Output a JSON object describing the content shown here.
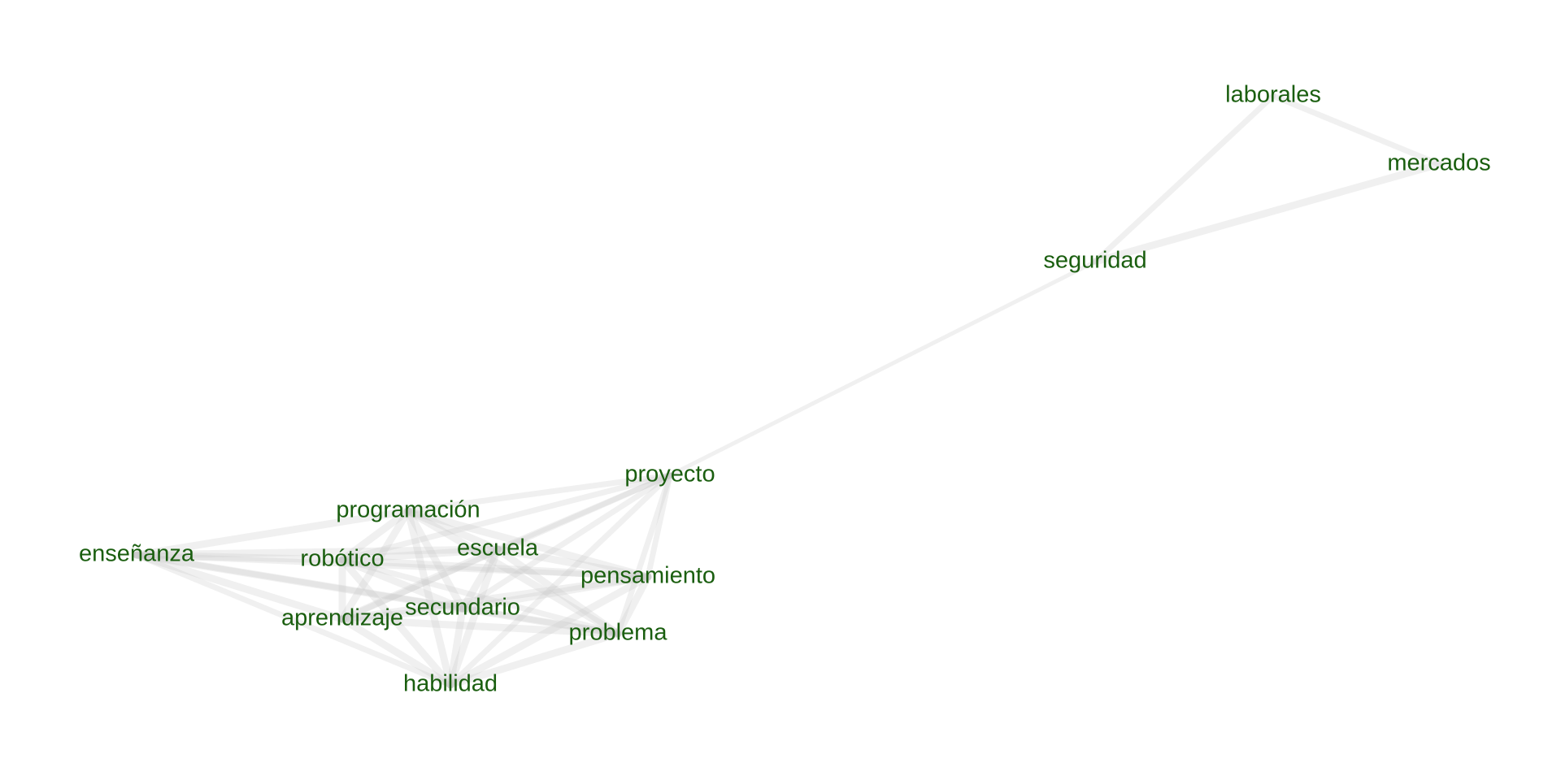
{
  "graph": {
    "label_color": "#1a5e0f",
    "edge_color": "#c8c8c8",
    "nodes": [
      {
        "id": "laborales",
        "label": "laborales"
      },
      {
        "id": "mercados",
        "label": "mercados"
      },
      {
        "id": "seguridad",
        "label": "seguridad"
      },
      {
        "id": "proyecto",
        "label": "proyecto"
      },
      {
        "id": "programacion",
        "label": "programación"
      },
      {
        "id": "ensenanza",
        "label": "enseñanza"
      },
      {
        "id": "robotico",
        "label": "robótico"
      },
      {
        "id": "escuela",
        "label": "escuela"
      },
      {
        "id": "pensamiento",
        "label": "pensamiento"
      },
      {
        "id": "secundario",
        "label": "secundario"
      },
      {
        "id": "aprendizaje",
        "label": "aprendizaje"
      },
      {
        "id": "problema",
        "label": "problema"
      },
      {
        "id": "habilidad",
        "label": "habilidad"
      }
    ],
    "edges": [
      {
        "source": "laborales",
        "target": "mercados",
        "weight": 2
      },
      {
        "source": "laborales",
        "target": "seguridad",
        "weight": 2
      },
      {
        "source": "mercados",
        "target": "seguridad",
        "weight": 3
      },
      {
        "source": "seguridad",
        "target": "proyecto",
        "weight": 1
      },
      {
        "source": "proyecto",
        "target": "programacion",
        "weight": 2
      },
      {
        "source": "proyecto",
        "target": "escuela",
        "weight": 2
      },
      {
        "source": "proyecto",
        "target": "pensamiento",
        "weight": 2
      },
      {
        "source": "proyecto",
        "target": "problema",
        "weight": 2
      },
      {
        "source": "proyecto",
        "target": "secundario",
        "weight": 2
      },
      {
        "source": "proyecto",
        "target": "robotico",
        "weight": 2
      },
      {
        "source": "proyecto",
        "target": "aprendizaje",
        "weight": 2
      },
      {
        "source": "proyecto",
        "target": "habilidad",
        "weight": 2
      },
      {
        "source": "ensenanza",
        "target": "programacion",
        "weight": 3
      },
      {
        "source": "ensenanza",
        "target": "robotico",
        "weight": 3
      },
      {
        "source": "ensenanza",
        "target": "escuela",
        "weight": 3
      },
      {
        "source": "ensenanza",
        "target": "secundario",
        "weight": 3
      },
      {
        "source": "ensenanza",
        "target": "aprendizaje",
        "weight": 3
      },
      {
        "source": "ensenanza",
        "target": "habilidad",
        "weight": 2
      },
      {
        "source": "ensenanza",
        "target": "problema",
        "weight": 2
      },
      {
        "source": "ensenanza",
        "target": "pensamiento",
        "weight": 2
      },
      {
        "source": "programacion",
        "target": "robotico",
        "weight": 3
      },
      {
        "source": "programacion",
        "target": "escuela",
        "weight": 3
      },
      {
        "source": "programacion",
        "target": "pensamiento",
        "weight": 3
      },
      {
        "source": "programacion",
        "target": "secundario",
        "weight": 3
      },
      {
        "source": "programacion",
        "target": "aprendizaje",
        "weight": 3
      },
      {
        "source": "programacion",
        "target": "problema",
        "weight": 3
      },
      {
        "source": "programacion",
        "target": "habilidad",
        "weight": 3
      },
      {
        "source": "robotico",
        "target": "escuela",
        "weight": 3
      },
      {
        "source": "robotico",
        "target": "pensamiento",
        "weight": 3
      },
      {
        "source": "robotico",
        "target": "secundario",
        "weight": 3
      },
      {
        "source": "robotico",
        "target": "aprendizaje",
        "weight": 3
      },
      {
        "source": "robotico",
        "target": "problema",
        "weight": 2
      },
      {
        "source": "robotico",
        "target": "habilidad",
        "weight": 3
      },
      {
        "source": "escuela",
        "target": "pensamiento",
        "weight": 3
      },
      {
        "source": "escuela",
        "target": "secundario",
        "weight": 3
      },
      {
        "source": "escuela",
        "target": "aprendizaje",
        "weight": 3
      },
      {
        "source": "escuela",
        "target": "problema",
        "weight": 3
      },
      {
        "source": "escuela",
        "target": "habilidad",
        "weight": 3
      },
      {
        "source": "pensamiento",
        "target": "secundario",
        "weight": 3
      },
      {
        "source": "pensamiento",
        "target": "aprendizaje",
        "weight": 3
      },
      {
        "source": "pensamiento",
        "target": "problema",
        "weight": 3
      },
      {
        "source": "pensamiento",
        "target": "habilidad",
        "weight": 3
      },
      {
        "source": "secundario",
        "target": "aprendizaje",
        "weight": 3
      },
      {
        "source": "secundario",
        "target": "problema",
        "weight": 3
      },
      {
        "source": "secundario",
        "target": "habilidad",
        "weight": 3
      },
      {
        "source": "aprendizaje",
        "target": "problema",
        "weight": 3
      },
      {
        "source": "aprendizaje",
        "target": "habilidad",
        "weight": 3
      },
      {
        "source": "problema",
        "target": "habilidad",
        "weight": 3
      }
    ]
  }
}
